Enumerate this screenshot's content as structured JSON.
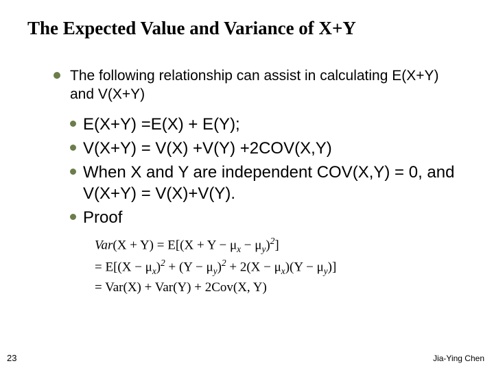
{
  "title": "The Expected Value and Variance of X+Y",
  "intro": "The following relationship can assist in calculating E(X+Y) and V(X+Y)",
  "items": {
    "a": "E(X+Y) =E(X) + E(Y);",
    "b": "V(X+Y) = V(X) +V(Y) +2COV(X,Y)",
    "c": "When X and Y are  independent  COV(X,Y) = 0, and V(X+Y) = V(X)+V(Y).",
    "d": "Proof"
  },
  "proof_html": {
    "line1_pre": "Var",
    "line1_paren": "(X + Y) = E[(X + Y − μ",
    "line1_subx": "x",
    "line1_mid": " − μ",
    "line1_suby": "y",
    "line1_end": ")",
    "line1_sup": "2",
    "line1_close": "]",
    "line2_eq": "= E[(X − μ",
    "line2_subx": "x",
    "line2_a": ")",
    "line2_sup1": "2",
    "line2_b": " + (Y − μ",
    "line2_suby": "y",
    "line2_c": ")",
    "line2_sup2": "2",
    "line2_d": " + 2(X − μ",
    "line2_subx2": "x",
    "line2_e": ")(Y − μ",
    "line2_suby2": "y",
    "line2_f": ")]",
    "line3": "= Var(X) + Var(Y) + 2Cov(X, Y)"
  },
  "page_number": "23",
  "author": "Jia-Ying Chen",
  "colors": {
    "bullet": "#6b7d4a",
    "text": "#000000",
    "background": "#ffffff"
  }
}
